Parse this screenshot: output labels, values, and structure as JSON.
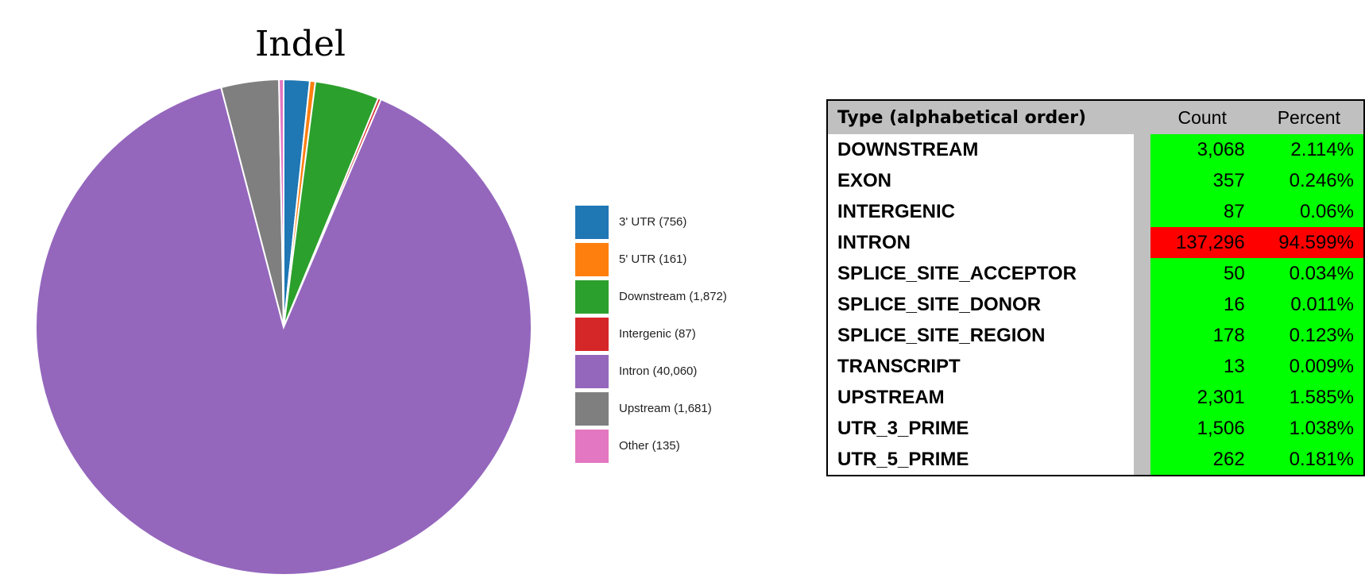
{
  "chart_data": [
    {
      "type": "pie",
      "title": "Indel",
      "slices": [
        {
          "label": "3' UTR (756)",
          "value": 756,
          "color": "#1f77b4"
        },
        {
          "label": "5' UTR (161)",
          "value": 161,
          "color": "#ff7f0e"
        },
        {
          "label": "Downstream (1,872)",
          "value": 1872,
          "color": "#2ca02c"
        },
        {
          "label": "Intergenic (87)",
          "value": 87,
          "color": "#d62728"
        },
        {
          "label": "Intron (40,060)",
          "value": 40060,
          "color": "#9467bd"
        },
        {
          "label": "Upstream (1,681)",
          "value": 1681,
          "color": "#7f7f7f"
        },
        {
          "label": "Other (135)",
          "value": 135,
          "color": "#e377c2"
        }
      ],
      "legend_position": "right"
    },
    {
      "type": "table",
      "headers": [
        "Type (alphabetical order)",
        "Count",
        "Percent"
      ],
      "rows": [
        {
          "type": "DOWNSTREAM",
          "count": "3,068",
          "percent": "2.114%",
          "highlight": "#00ff00"
        },
        {
          "type": "EXON",
          "count": "357",
          "percent": "0.246%",
          "highlight": "#00ff00"
        },
        {
          "type": "INTERGENIC",
          "count": "87",
          "percent": "0.06%",
          "highlight": "#00ff00"
        },
        {
          "type": "INTRON",
          "count": "137,296",
          "percent": "94.599%",
          "highlight": "#ff0000"
        },
        {
          "type": "SPLICE_SITE_ACCEPTOR",
          "count": "50",
          "percent": "0.034%",
          "highlight": "#00ff00"
        },
        {
          "type": "SPLICE_SITE_DONOR",
          "count": "16",
          "percent": "0.011%",
          "highlight": "#00ff00"
        },
        {
          "type": "SPLICE_SITE_REGION",
          "count": "178",
          "percent": "0.123%",
          "highlight": "#00ff00"
        },
        {
          "type": "TRANSCRIPT",
          "count": "13",
          "percent": "0.009%",
          "highlight": "#00ff00"
        },
        {
          "type": "UPSTREAM",
          "count": "2,301",
          "percent": "1.585%",
          "highlight": "#00ff00"
        },
        {
          "type": "UTR_3_PRIME",
          "count": "1,506",
          "percent": "1.038%",
          "highlight": "#00ff00"
        },
        {
          "type": "UTR_5_PRIME",
          "count": "262",
          "percent": "0.181%",
          "highlight": "#00ff00"
        }
      ]
    }
  ]
}
